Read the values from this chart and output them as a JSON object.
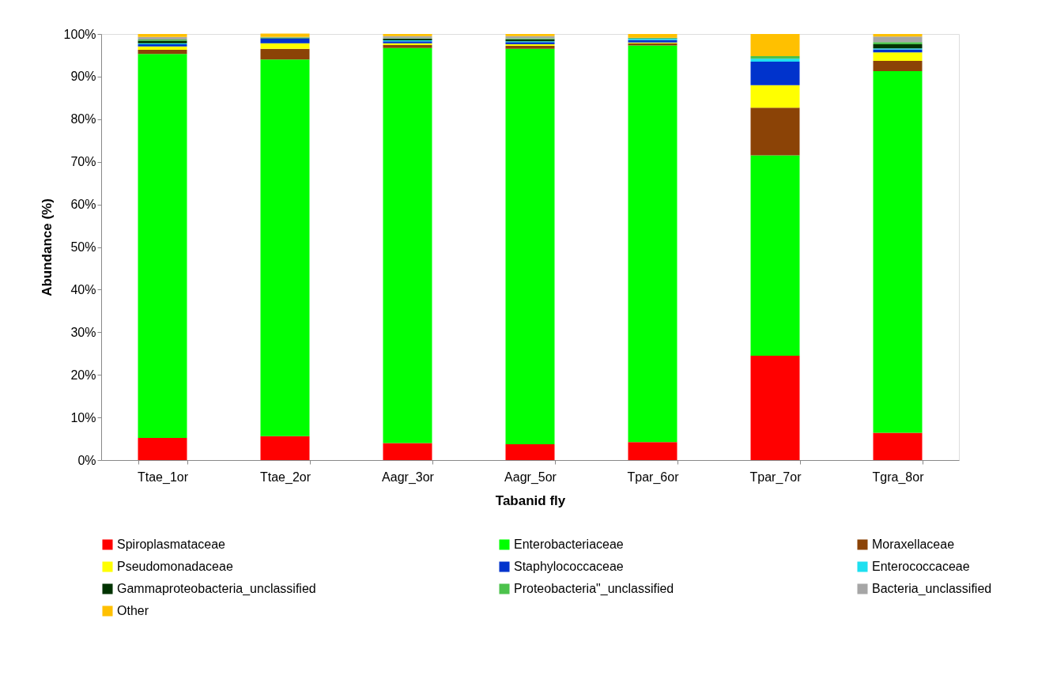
{
  "chart_data": {
    "type": "bar",
    "stacked": true,
    "xlabel": "Tabanid fly",
    "ylabel": "Abundance (%)",
    "categories": [
      "Ttae_1or",
      "Ttae_2or",
      "Aagr_3or",
      "Aagr_5or",
      "Tpar_6or",
      "Tpar_7or",
      "Tgra_8or"
    ],
    "ylim": [
      0,
      100
    ],
    "yticks": [
      {
        "value": 0,
        "label": "0%"
      },
      {
        "value": 10,
        "label": "10%"
      },
      {
        "value": 20,
        "label": "20%"
      },
      {
        "value": 30,
        "label": "30%"
      },
      {
        "value": 40,
        "label": "40%"
      },
      {
        "value": 50,
        "label": "50%"
      },
      {
        "value": 60,
        "label": "60%"
      },
      {
        "value": 70,
        "label": "70%"
      },
      {
        "value": 80,
        "label": "80%"
      },
      {
        "value": 90,
        "label": "90%"
      },
      {
        "value": 100,
        "label": "100%"
      }
    ],
    "grid": false,
    "legend": "bottom",
    "series": [
      {
        "name": "Spiroplasmataceae",
        "color": "#ff0000",
        "values": [
          5.2,
          5.6,
          4.0,
          3.7,
          4.2,
          24.5,
          6.4
        ]
      },
      {
        "name": "Enterobacteriaceae",
        "color": "#00ff00",
        "values": [
          90.1,
          88.4,
          92.7,
          92.8,
          93.1,
          47.0,
          84.9
        ]
      },
      {
        "name": "Moraxellaceae",
        "color": "#8b4306",
        "values": [
          1.0,
          2.5,
          0.7,
          0.7,
          0.5,
          11.2,
          2.4
        ]
      },
      {
        "name": "Pseudomonadaceae",
        "color": "#ffff00",
        "values": [
          0.8,
          1.3,
          0.4,
          0.4,
          0.2,
          5.3,
          2.0
        ]
      },
      {
        "name": "Staphylococcaceae",
        "color": "#0033cc",
        "values": [
          0.5,
          1.1,
          0.5,
          0.5,
          0.6,
          5.5,
          0.7
        ]
      },
      {
        "name": "Enterococcaceae",
        "color": "#1ee0f0",
        "values": [
          0.2,
          0.1,
          0.2,
          0.2,
          0.3,
          0.7,
          0.2
        ]
      },
      {
        "name": "Gammaproteobacteria_unclassified",
        "color": "#003300",
        "values": [
          0.6,
          0.1,
          0.4,
          0.5,
          0.1,
          0,
          1.0
        ]
      },
      {
        "name": "Proteobacteria\"_unclassified",
        "color": "#4cc24c",
        "values": [
          0.3,
          0.1,
          0.1,
          0.2,
          0.1,
          0.6,
          0.5
        ]
      },
      {
        "name": "Bacteria_unclassified",
        "color": "#a6a6a6",
        "values": [
          0.6,
          0.1,
          0.5,
          0.5,
          null,
          0,
          1.3
        ]
      },
      {
        "name": "Other",
        "color": "#ffc000",
        "values": [
          0.7,
          0.8,
          0.5,
          0.5,
          0.9,
          5.2,
          0.6
        ]
      }
    ]
  }
}
